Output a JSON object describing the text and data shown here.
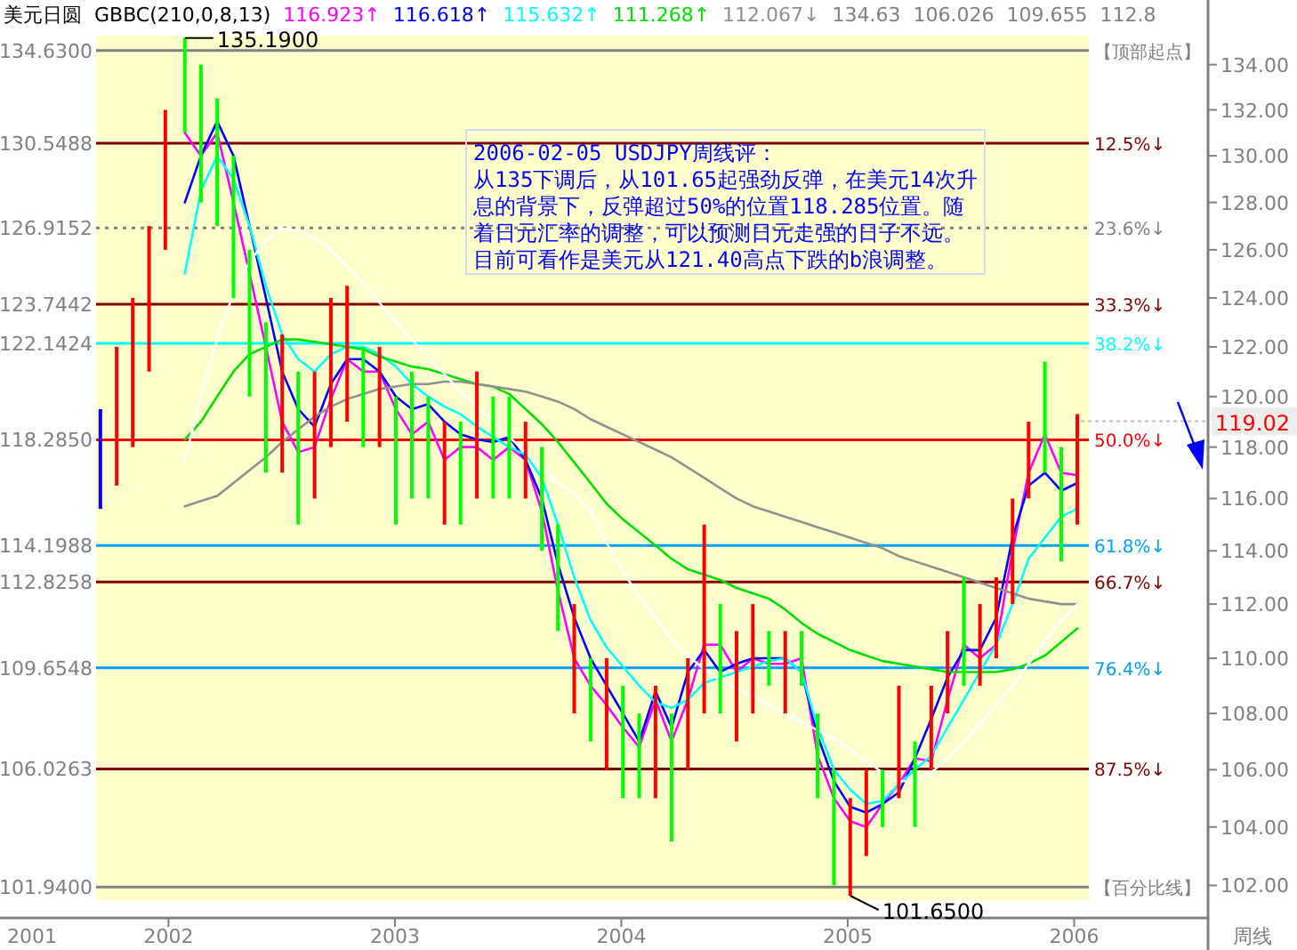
{
  "chart_data": {
    "type": "bar",
    "title": "美元日圆",
    "subtitle": "GBBC(210,0,8,13)",
    "annotations": [
      "116.923↑",
      "116.618↑",
      "115.632↑",
      "111.268↑",
      "112.067↓",
      "134.63",
      "106.026",
      "109.655",
      "112.8",
      "2006-02-05 USDJPY周线评：",
      "从135下调后，从101.65起强劲反弹，在美元14次升",
      "息的背景下，反弹超过50%的位置118.285位置。随",
      "着日元汇率的调整，可以预测日元走强的日子不远。",
      "目前可看作是美元从121.40高点下跌的b浪调整。",
      "周线",
      "2001",
      {
        "text": "134.6300",
        "x": 2001.68,
        "y": 134.63
      },
      {
        "text": "130.5488",
        "x": 2001.68,
        "y": 130.5488
      },
      {
        "text": "126.9152",
        "x": 2001.68,
        "y": 126.9152
      },
      {
        "text": "123.7442",
        "x": 2001.68,
        "y": 123.7442
      },
      {
        "text": "122.1424",
        "x": 2001.68,
        "y": 122.1424
      },
      {
        "text": "118.2850",
        "x": 2001.68,
        "y": 118.285
      },
      {
        "text": "114.1988",
        "x": 2001.68,
        "y": 114.1988
      },
      {
        "text": "112.8258",
        "x": 2001.68,
        "y": 112.8258
      },
      {
        "text": "109.6548",
        "x": 2001.68,
        "y": 109.6548
      },
      {
        "text": "106.0263",
        "x": 2001.68,
        "y": 106.0263
      },
      {
        "text": "101.9400",
        "x": 2001.68,
        "y": 101.94
      },
      {
        "text": "135.1900",
        "x": 2002.072,
        "y": 135.19
      },
      {
        "text": "101.6500",
        "x": 2005.011,
        "y": 101.65
      },
      {
        "text": "119.02",
        "x": 2006.014,
        "y": 119.02
      }
    ],
    "x": [
      2001.699,
      2001.771,
      2001.842,
      2001.914,
      2001.986,
      2002.072,
      2002.143,
      2002.215,
      2002.287,
      2002.358,
      2002.43,
      2002.502,
      2002.573,
      2002.645,
      2002.717,
      2002.789,
      2002.86,
      2002.932,
      2003.004,
      2003.075,
      2003.147,
      2003.219,
      2003.29,
      2003.362,
      2003.434,
      2003.505,
      2003.577,
      2003.649,
      2003.72,
      2003.792,
      2003.864,
      2003.935,
      2004.007,
      2004.079,
      2004.151,
      2004.222,
      2004.294,
      2004.366,
      2004.437,
      2004.509,
      2004.581,
      2004.652,
      2004.724,
      2004.796,
      2004.867,
      2004.939,
      2005.011,
      2005.082,
      2005.154,
      2005.226,
      2005.297,
      2005.369,
      2005.441,
      2005.513,
      2005.584,
      2005.656,
      2005.728,
      2005.799,
      2005.871,
      2005.943,
      2006.014
    ],
    "series": [
      {
        "base": [
          115.6,
          116.5,
          118,
          121,
          126,
          131,
          128,
          127,
          124,
          120,
          117,
          117,
          115,
          116,
          118,
          119,
          118,
          118,
          115,
          116,
          116,
          115,
          115,
          116,
          116,
          116,
          116,
          114,
          111,
          108,
          107,
          106,
          105,
          105,
          105,
          103.5,
          106,
          108,
          108,
          107,
          108,
          109,
          108,
          109,
          105,
          102,
          101.65,
          103,
          104,
          105,
          104,
          106,
          108,
          109,
          109,
          110,
          112,
          116,
          117,
          113.6,
          115
        ],
        "values": [
          3.9,
          5.5,
          6,
          6,
          6,
          4.19,
          6,
          5.5,
          6,
          6,
          6,
          5.5,
          6,
          5,
          6,
          5.5,
          4,
          4,
          5,
          5,
          4,
          4,
          4,
          5,
          4,
          4,
          3,
          4,
          4,
          4,
          3,
          4,
          4,
          3,
          4,
          4.5,
          4,
          7,
          4,
          4,
          4,
          2,
          3,
          2,
          3,
          4,
          3.35,
          3,
          2,
          4,
          3,
          3,
          3,
          4,
          3,
          3,
          4,
          3,
          4.4,
          4.4,
          4.3
        ],
        "colors": [
          "#0000ff",
          "#ff0000",
          "#ff0000",
          "#ff0000",
          "#ff0000",
          "#00ff00",
          "#00ff00",
          "#00ff00",
          "#00ff00",
          "#00ff00",
          "#00ff00",
          "#ff0000",
          "#00ff00",
          "#ff0000",
          "#ff0000",
          "#ff0000",
          "#00ff00",
          "#ff0000",
          "#00ff00",
          "#00ff00",
          "#00ff00",
          "#ff0000",
          "#00ff00",
          "#ff0000",
          "#00ff00",
          "#00ff00",
          "#ff0000",
          "#00ff00",
          "#00ff00",
          "#ff0000",
          "#00ff00",
          "#ff0000",
          "#00ff00",
          "#00ff00",
          "#ff0000",
          "#00ff00",
          "#ff0000",
          "#ff0000",
          "#00ff00",
          "#ff0000",
          "#ff0000",
          "#00ff00",
          "#ff0000",
          "#00ff00",
          "#00ff00",
          "#00ff00",
          "#ff0000",
          "#ff0000",
          "#00ff00",
          "#ff0000",
          "#00ff00",
          "#ff0000",
          "#ff0000",
          "#00ff00",
          "#ff0000",
          "#ff0000",
          "#ff0000",
          "#ff0000",
          "#00ff00",
          "#00ff00",
          "#ff0000"
        ]
      },
      {
        "type": "line",
        "color": "#ff00ff",
        "values": [
          null,
          null,
          null,
          null,
          null,
          131,
          130,
          131,
          128,
          125,
          122,
          119,
          117.8,
          118,
          119.9,
          121.5,
          121,
          121,
          119.5,
          118.5,
          119,
          117.5,
          118,
          118,
          117.5,
          118,
          117.5,
          115.5,
          112.5,
          110,
          109,
          108.3,
          107.5,
          106.8,
          108.5,
          107,
          108.5,
          110.5,
          110.5,
          109.5,
          110,
          109.8,
          109.8,
          110,
          106.5,
          105,
          104.2,
          104,
          104.8,
          105.5,
          106.4,
          106.3,
          108.5,
          110.5,
          110,
          110.5,
          114,
          117,
          118.5,
          117,
          116.9
        ]
      },
      {
        "type": "line",
        "color": "#0000ff",
        "values": [
          null,
          null,
          null,
          null,
          null,
          128,
          130,
          131.5,
          130,
          127,
          124,
          121,
          119.5,
          118.8,
          120.5,
          121.5,
          121.5,
          121,
          120,
          119.5,
          119.7,
          119,
          118.5,
          118.3,
          118.2,
          118.4,
          117.5,
          116,
          113.5,
          111.5,
          110,
          109,
          108,
          107,
          108.8,
          107.5,
          109.5,
          110.3,
          109.5,
          109.8,
          110,
          110,
          110,
          109.5,
          107.2,
          105.6,
          104.7,
          104.5,
          104.8,
          105.2,
          106.4,
          107.8,
          109.3,
          110.3,
          110.3,
          111.5,
          114.5,
          116.5,
          117,
          116.3,
          116.6
        ]
      },
      {
        "type": "line",
        "color": "#00ffff",
        "values": [
          null,
          null,
          null,
          null,
          null,
          125,
          128.5,
          130,
          129,
          127,
          124.5,
          122.5,
          121.5,
          121,
          121.7,
          122,
          122,
          121.7,
          121.2,
          120.5,
          120,
          119.6,
          119.3,
          118.8,
          118.4,
          118,
          117.7,
          116.8,
          115,
          113,
          111.4,
          110.4,
          109.7,
          109,
          108.4,
          108.2,
          108.5,
          109.1,
          109.3,
          109.5,
          109.7,
          109.9,
          110,
          109.5,
          107.5,
          106,
          105.3,
          104.8,
          104.9,
          105.5,
          106,
          106.5,
          107.5,
          108.5,
          109.5,
          110.5,
          112,
          113.7,
          114.5,
          115.3,
          115.6
        ]
      },
      {
        "type": "line",
        "color": "#00e000",
        "values": [
          null,
          null,
          null,
          null,
          null,
          118.3,
          119,
          120,
          121,
          121.7,
          122,
          122.3,
          122.3,
          122.2,
          122.1,
          122,
          121.9,
          121.6,
          121.4,
          121.2,
          121.1,
          120.9,
          120.7,
          120.5,
          120.4,
          120.1,
          119.5,
          118.9,
          118.2,
          117.4,
          116.6,
          115.8,
          115.2,
          114.7,
          114.2,
          113.7,
          113.3,
          113.1,
          112.9,
          112.6,
          112.4,
          112.2,
          111.8,
          111.3,
          110.9,
          110.6,
          110.3,
          110.1,
          109.9,
          109.8,
          109.7,
          109.6,
          109.5,
          109.5,
          109.5,
          109.5,
          109.6,
          109.8,
          110.1,
          110.6,
          111.1
        ]
      },
      {
        "type": "line",
        "color": "#909090",
        "values": [
          null,
          null,
          null,
          null,
          null,
          115.7,
          115.9,
          116.1,
          116.6,
          117.1,
          117.6,
          118.2,
          118.7,
          119.2,
          119.6,
          119.9,
          120.1,
          120.3,
          120.4,
          120.5,
          120.5,
          120.6,
          120.6,
          120.5,
          120.4,
          120.3,
          120.2,
          120,
          119.8,
          119.5,
          119.1,
          118.8,
          118.5,
          118.2,
          117.9,
          117.6,
          117.2,
          116.8,
          116.4,
          116,
          115.7,
          115.5,
          115.3,
          115.1,
          114.9,
          114.7,
          114.5,
          114.3,
          114.1,
          113.8,
          113.6,
          113.4,
          113.2,
          113,
          112.8,
          112.6,
          112.4,
          112.2,
          112.1,
          112,
          112
        ]
      },
      {
        "type": "line",
        "color": "#ffffff",
        "values": [
          null,
          null,
          null,
          null,
          null,
          117.5,
          120,
          122.3,
          124.2,
          125.5,
          126.4,
          126.9,
          126.8,
          126.5,
          126,
          125.3,
          124.6,
          123.8,
          123,
          122.3,
          121.6,
          120.9,
          120.2,
          119.6,
          119,
          118.4,
          117.8,
          117.2,
          116.6,
          116.2,
          115.5,
          114.3,
          113.2,
          112.3,
          111.5,
          110.7,
          110.1,
          109.6,
          109.2,
          108.9,
          108.6,
          108.3,
          108,
          107.7,
          107.4,
          107.1,
          106.7,
          106.3,
          105.9,
          105.6,
          105.6,
          105.9,
          106.4,
          107,
          107.6,
          108.3,
          109,
          109.8,
          110.6,
          111.4,
          112
        ]
      }
    ],
    "xlim": [
      2001.68,
      2006.065
    ],
    "xticks": [
      2002,
      2003,
      2004,
      2005,
      2006
    ],
    "ylim": [
      101.5,
      135.3
    ],
    "yticks": [
      {
        "value": 102,
        "label": "102.00"
      },
      {
        "value": 104,
        "label": "104.00"
      },
      {
        "value": 106,
        "label": "106.00"
      },
      {
        "value": 108,
        "label": "108.00"
      },
      {
        "value": 110,
        "label": "110.00"
      },
      {
        "value": 112,
        "label": "112.00"
      },
      {
        "value": 114,
        "label": "114.00"
      },
      {
        "value": 116,
        "label": "116.00"
      },
      {
        "value": 118,
        "label": "118.00"
      },
      {
        "value": 120,
        "label": "120.00"
      },
      {
        "value": 122,
        "label": "122.00"
      },
      {
        "value": 124,
        "label": "124.00"
      },
      {
        "value": 126,
        "label": "126.00"
      },
      {
        "value": 128,
        "label": "128.00"
      },
      {
        "value": 130,
        "label": "130.00"
      },
      {
        "value": 132,
        "label": "132.00"
      },
      {
        "value": 134,
        "label": "134.00"
      }
    ],
    "log": true,
    "ref_lines": [
      {
        "axis": "y",
        "value": 134.63,
        "label": "【顶部起点】",
        "color": "#808080"
      },
      {
        "axis": "y",
        "value": 130.5488,
        "label": "12.5%↓",
        "color": "#800000"
      },
      {
        "axis": "y",
        "value": 126.9152,
        "label": "23.6%↓",
        "color": "#808080",
        "line_style": "dotted"
      },
      {
        "axis": "y",
        "value": 123.7442,
        "label": "33.3%↓",
        "color": "#800000"
      },
      {
        "axis": "y",
        "value": 122.1424,
        "label": "38.2%↓",
        "color": "#00ffff"
      },
      {
        "axis": "y",
        "value": 118.285,
        "label": "50.0%↓",
        "color": "#ff0000"
      },
      {
        "axis": "y",
        "value": 114.1988,
        "label": "61.8%↓",
        "color": "#00a0ff"
      },
      {
        "axis": "y",
        "value": 112.8258,
        "label": "66.7%↓",
        "color": "#800000"
      },
      {
        "axis": "y",
        "value": 109.6548,
        "label": "76.4%↓",
        "color": "#00a0ff"
      },
      {
        "axis": "y",
        "value": 106.0263,
        "label": "87.5%↓",
        "color": "#800000"
      },
      {
        "axis": "y",
        "value": 101.94,
        "label": "【百分比线】",
        "color": "#808080"
      }
    ]
  }
}
